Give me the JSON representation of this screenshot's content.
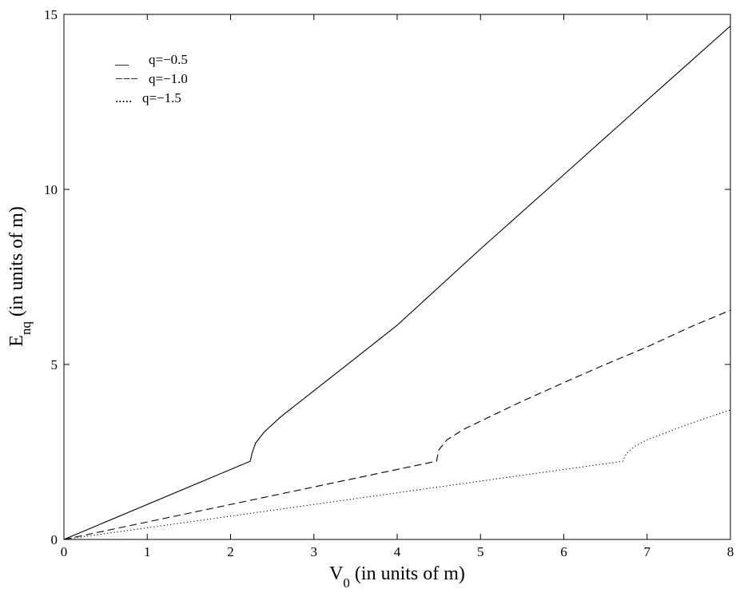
{
  "chart_data": {
    "type": "line",
    "title": "",
    "xlabel": {
      "main": "V",
      "sub": "0",
      "rest": " (in units of m)"
    },
    "ylabel": {
      "main": "E",
      "sub": "nq",
      "rest": " (in units of m)"
    },
    "xlim": [
      0,
      8
    ],
    "ylim": [
      0,
      15
    ],
    "xticks": [
      0,
      1,
      2,
      3,
      4,
      5,
      6,
      7,
      8
    ],
    "yticks": [
      0,
      5,
      10,
      15
    ],
    "grid": false,
    "legend_position": "top-left",
    "series": [
      {
        "name": "q=−0.5",
        "legend_prefix": "__",
        "style": "solid",
        "x": [
          0,
          2.236,
          2.26,
          2.3,
          2.4,
          2.6,
          3.0,
          3.5,
          4.0,
          5.0,
          6.0,
          7.0,
          8.0
        ],
        "y": [
          0,
          2.236,
          2.48,
          2.75,
          3.06,
          3.5,
          4.25,
          5.18,
          6.12,
          8.3,
          10.42,
          12.55,
          14.67
        ]
      },
      {
        "name": "q=−1.0",
        "legend_prefix": "−−−",
        "style": "dashed",
        "x": [
          0,
          4.472,
          4.5,
          4.6,
          4.8,
          5.0,
          5.5,
          6.0,
          6.5,
          7.0,
          7.5,
          8.0
        ],
        "y": [
          0,
          2.236,
          2.56,
          2.85,
          3.15,
          3.38,
          3.95,
          4.48,
          5.0,
          5.5,
          6.05,
          6.55
        ]
      },
      {
        "name": "q=−1.5",
        "legend_prefix": ".....",
        "style": "dotted",
        "x": [
          0,
          6.708,
          6.75,
          6.85,
          7.0,
          7.5,
          8.0
        ],
        "y": [
          0,
          2.236,
          2.45,
          2.66,
          2.85,
          3.3,
          3.7
        ]
      }
    ]
  }
}
